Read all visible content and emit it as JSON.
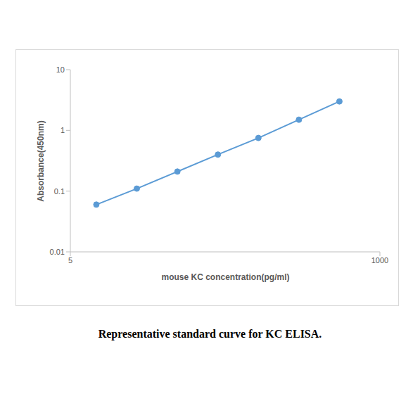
{
  "chart_data": {
    "type": "line",
    "title": "Representative standard curve for KC ELISA.",
    "x_label": "mouse KC concentration(pg/ml)",
    "y_label": "Absorbance(450nm)",
    "x": [
      7.8,
      15.6,
      31.25,
      62.5,
      125,
      250,
      500
    ],
    "values": [
      0.06,
      0.11,
      0.21,
      0.4,
      0.75,
      1.5,
      3.0
    ],
    "color": "#5b9bd5",
    "marker": "circle",
    "xlim": [
      5,
      1000
    ],
    "xticks": [
      5,
      1000
    ],
    "ylim": [
      0.01,
      10
    ],
    "yticks": [
      0.01,
      0.1,
      1,
      10
    ],
    "log": true,
    "grid": false
  }
}
